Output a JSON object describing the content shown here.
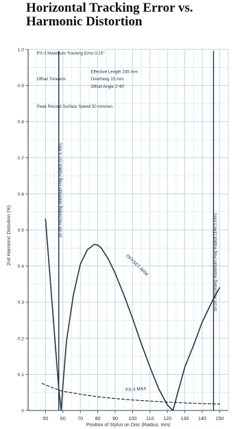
{
  "chart_data": {
    "type": "line",
    "title": [
      "Horizontal Tracking Error vs.",
      "Harmonic Distortion"
    ],
    "xlabel": "Position of Stylus on Disc (Radius, mm)",
    "ylabel": "2nd Harmonic Distortion (%)",
    "xlim": [
      40,
      155
    ],
    "ylim": [
      0,
      1.0
    ],
    "x_ticks": [
      50,
      60,
      70,
      80,
      90,
      100,
      110,
      120,
      130,
      140,
      150
    ],
    "y_ticks": [
      0,
      0.1,
      0.2,
      0.3,
      0.4,
      0.5,
      0.6,
      0.7,
      0.8,
      0.9,
      1.0
    ],
    "y_tick_labels": [
      "0",
      "0.1",
      "0.2",
      "0.3",
      "0.4",
      "0.5",
      "0.6",
      "0.7",
      "0.8",
      "0.9",
      "1.0"
    ],
    "grid": true,
    "colors": {
      "grid": "#b7d7e8",
      "axis": "#334455",
      "line": "#24313d",
      "text": "#1f2f3f"
    },
    "info_lines": [
      {
        "text": "PX-3 Maximum Tracking Error 0.15°",
        "x": 45,
        "y": 0.986
      },
      {
        "text": "Offset Tonearm",
        "x": 45,
        "y": 0.914
      },
      {
        "text": "Effective Length 245 mm",
        "x": 76,
        "y": 0.934
      },
      {
        "text": "Overhang 15 mm",
        "x": 76,
        "y": 0.914
      },
      {
        "text": "Offset Angle 2°40'",
        "x": 76,
        "y": 0.894
      },
      {
        "text": "Peak Record Surface Speed 50 mm/sec.",
        "x": 45,
        "y": 0.838
      }
    ],
    "vertical_markers": [
      {
        "x": 57.6,
        "label": "30 cm Recording Minimum Play Radius (57.6 mm)",
        "label_x": 59.4,
        "label_y": 0.61
      },
      {
        "x": 146.5,
        "label": "30 cm Recording Maximum Play Radius (146.5 mm)",
        "label_x": 148.3,
        "label_y": 0.41
      }
    ],
    "annotations": [
      {
        "text": "OFFSET ARM",
        "x": 102,
        "y": 0.4,
        "rotation": 44
      },
      {
        "text": "PX-3 MAX",
        "x": 102,
        "y": 0.055,
        "rotation": -4
      }
    ],
    "series": [
      {
        "name": "OFFSET ARM",
        "style": "solid",
        "x": [
          50,
          57.6,
          59,
          60,
          62,
          66,
          70,
          74,
          78,
          80,
          82,
          86,
          90,
          95,
          100,
          105,
          110,
          115,
          120,
          123.2,
          126,
          130,
          135,
          140,
          146.5,
          150
        ],
        "y": [
          0.53,
          0.06,
          0.0,
          0.07,
          0.19,
          0.32,
          0.405,
          0.445,
          0.46,
          0.458,
          0.45,
          0.42,
          0.38,
          0.32,
          0.255,
          0.185,
          0.12,
          0.06,
          0.015,
          0.0,
          0.05,
          0.12,
          0.18,
          0.245,
          0.31,
          0.34
        ]
      },
      {
        "name": "PX-3 MAX",
        "style": "dashed",
        "x": [
          48,
          54,
          60,
          70,
          80,
          90,
          100,
          110,
          120,
          130,
          140,
          150
        ],
        "y": [
          0.075,
          0.063,
          0.053,
          0.045,
          0.038,
          0.033,
          0.029,
          0.026,
          0.023,
          0.021,
          0.019,
          0.018
        ]
      }
    ]
  }
}
